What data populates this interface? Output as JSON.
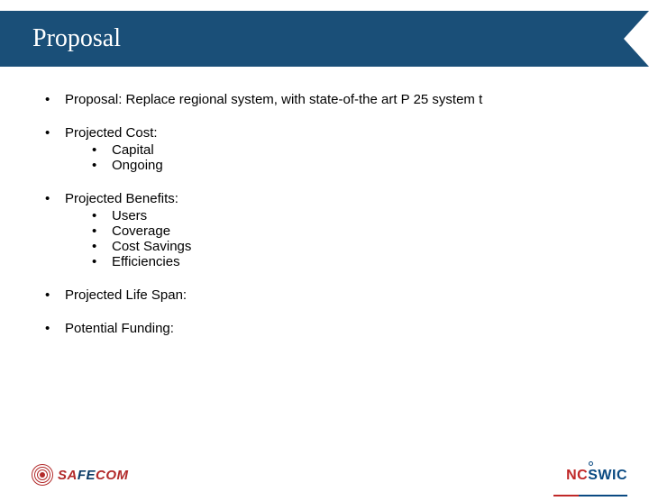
{
  "title": "Proposal",
  "colors": {
    "title_bar_bg": "#1a4f78",
    "title_text": "#ffffff",
    "body_text": "#000000",
    "safecom_red": "#b22a2a",
    "safecom_blue": "#0a3a66",
    "ncswic_red": "#c02828",
    "ncswic_blue": "#0a4a82",
    "background": "#ffffff"
  },
  "typography": {
    "title_font": "Times New Roman",
    "title_size_pt": 21,
    "body_font": "Arial",
    "body_size_pt": 11
  },
  "bullets": [
    {
      "text": "Proposal: Replace regional system, with state-of-the art P 25 system t"
    },
    {
      "text": "Projected Cost:",
      "sub": [
        "Capital",
        "Ongoing"
      ]
    },
    {
      "text": "Projected Benefits:",
      "sub": [
        "Users",
        "Coverage",
        "Cost Savings",
        "Efficiencies"
      ]
    },
    {
      "text": "Projected Life Span:"
    },
    {
      "text": "Potential Funding:"
    }
  ],
  "footer": {
    "left_logo": {
      "name": "SAFECOM",
      "prefix": "SA",
      "mid": "FE",
      "suffix": "COM"
    },
    "right_logo": {
      "name": "NCSWIC",
      "prefix": "NC",
      "suffix": "SWIC"
    }
  }
}
